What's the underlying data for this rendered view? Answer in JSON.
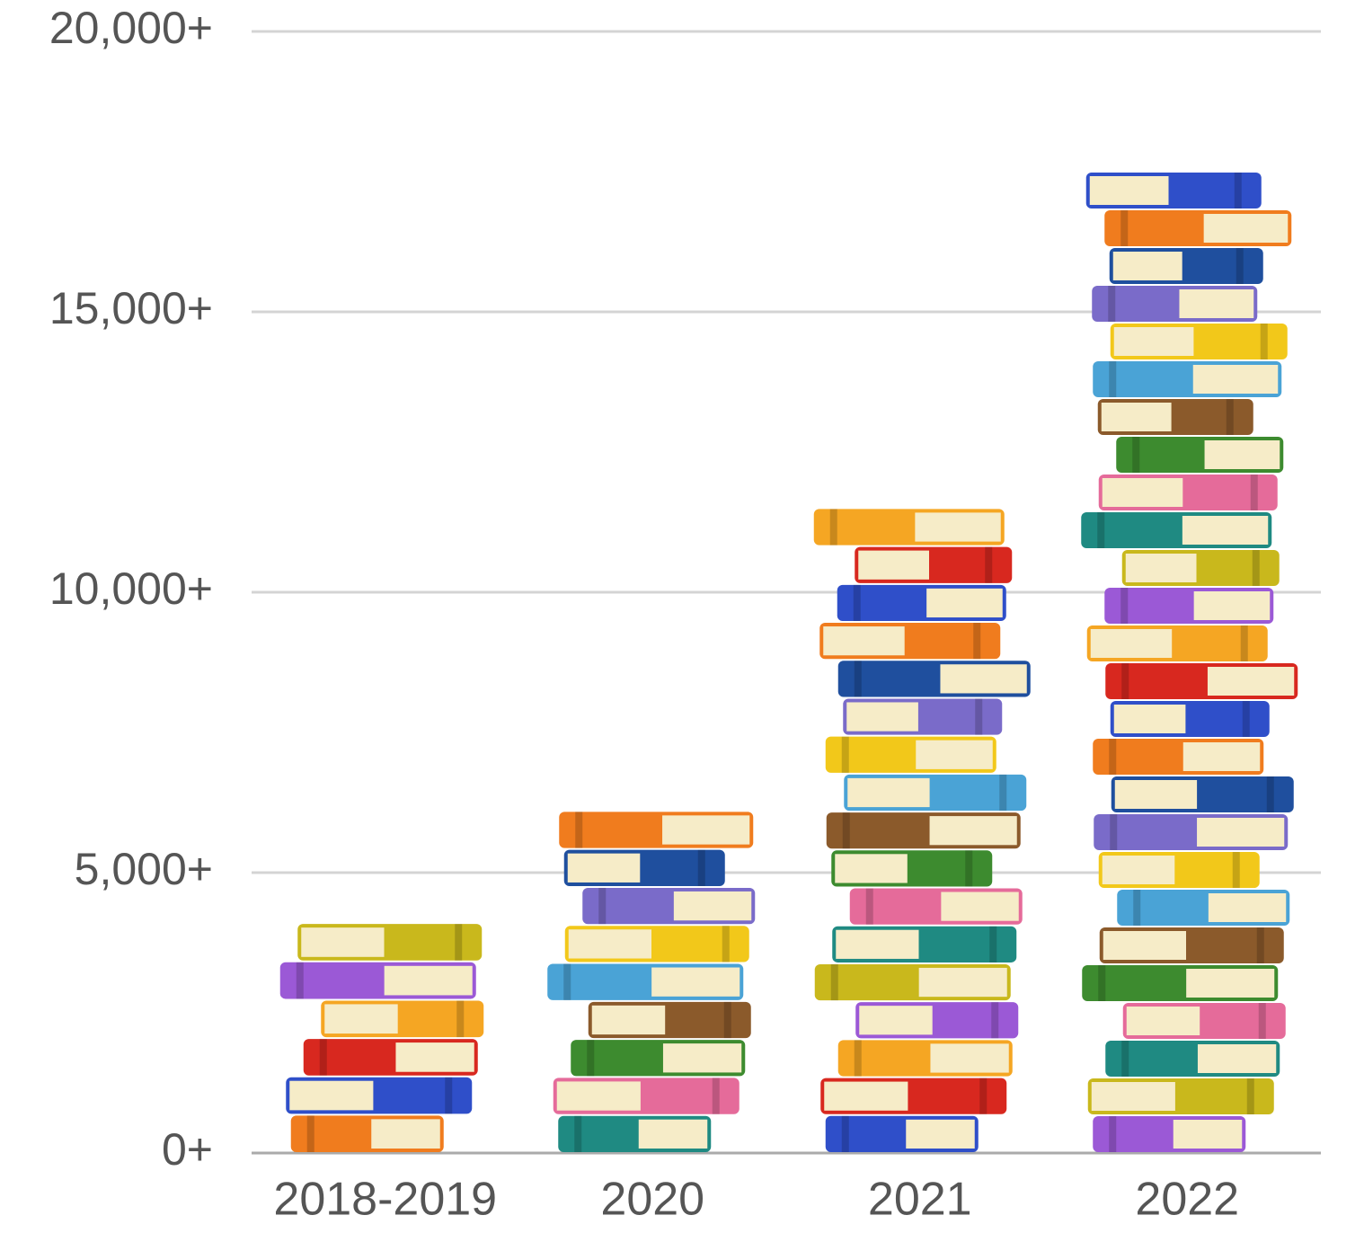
{
  "chart_data": {
    "type": "bar",
    "categories": [
      "2018-2019",
      "2020",
      "2021",
      "2022"
    ],
    "values": [
      4100,
      6100,
      11500,
      17500
    ],
    "colors": [
      "#f07c1e",
      "#2f4fc9",
      "#d8281f",
      "#f5a623",
      "#9b59d6",
      "#c9b81c",
      "#1f8a82",
      "#e56b9a",
      "#3d8b2f",
      "#8b5a2b",
      "#4aa3d6",
      "#f2c81a",
      "#7a6bc9",
      "#1f4f9e"
    ],
    "ylim": [
      0,
      20000
    ],
    "yticks": [
      {
        "value": 0,
        "label": "0+"
      },
      {
        "value": 5000,
        "label": "5,000+"
      },
      {
        "value": 10000,
        "label": "10,000+"
      },
      {
        "value": 15000,
        "label": "15,000+"
      },
      {
        "value": 20000,
        "label": "20,000+"
      }
    ],
    "grid": true
  }
}
